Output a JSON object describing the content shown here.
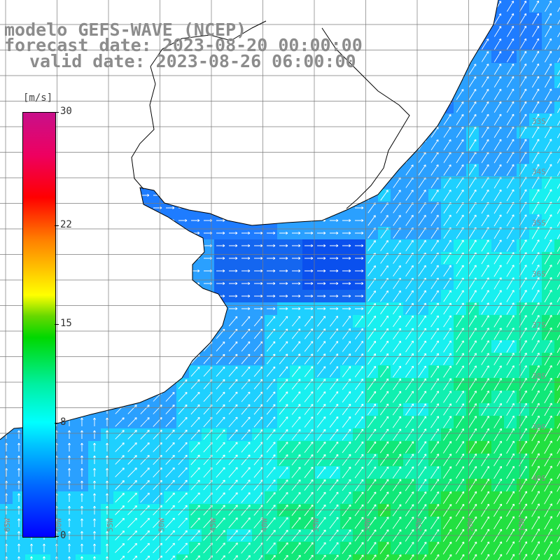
{
  "header": {
    "line1": "modelo GEFS-WAVE (NCEP)",
    "line2": "forecast date: 2023-08-20 00:00:00",
    "line3": "valid date: 2023-08-26 06:00:00"
  },
  "legend": {
    "unit": "[m/s]",
    "ticks": [
      {
        "label": "30",
        "value": 30
      },
      {
        "label": "22",
        "value": 22
      },
      {
        "label": "15",
        "value": 15
      },
      {
        "label": "8",
        "value": 8
      },
      {
        "label": "0",
        "value": 0
      }
    ],
    "range": [
      0,
      30
    ]
  },
  "grid": {
    "lon_labels": [
      "65W",
      "60W",
      "55W",
      "50W",
      "45W",
      "40W",
      "35W",
      "30W",
      "25W",
      "20W",
      "15W"
    ],
    "lat_labels": [
      "33S",
      "34S",
      "35S",
      "36S",
      "37S",
      "38S",
      "39S",
      "40S"
    ]
  },
  "colors": {
    "land": "#ffffff",
    "coast": "#000000",
    "grid": "#7a7a7a",
    "arrow": "#ffffff"
  }
}
